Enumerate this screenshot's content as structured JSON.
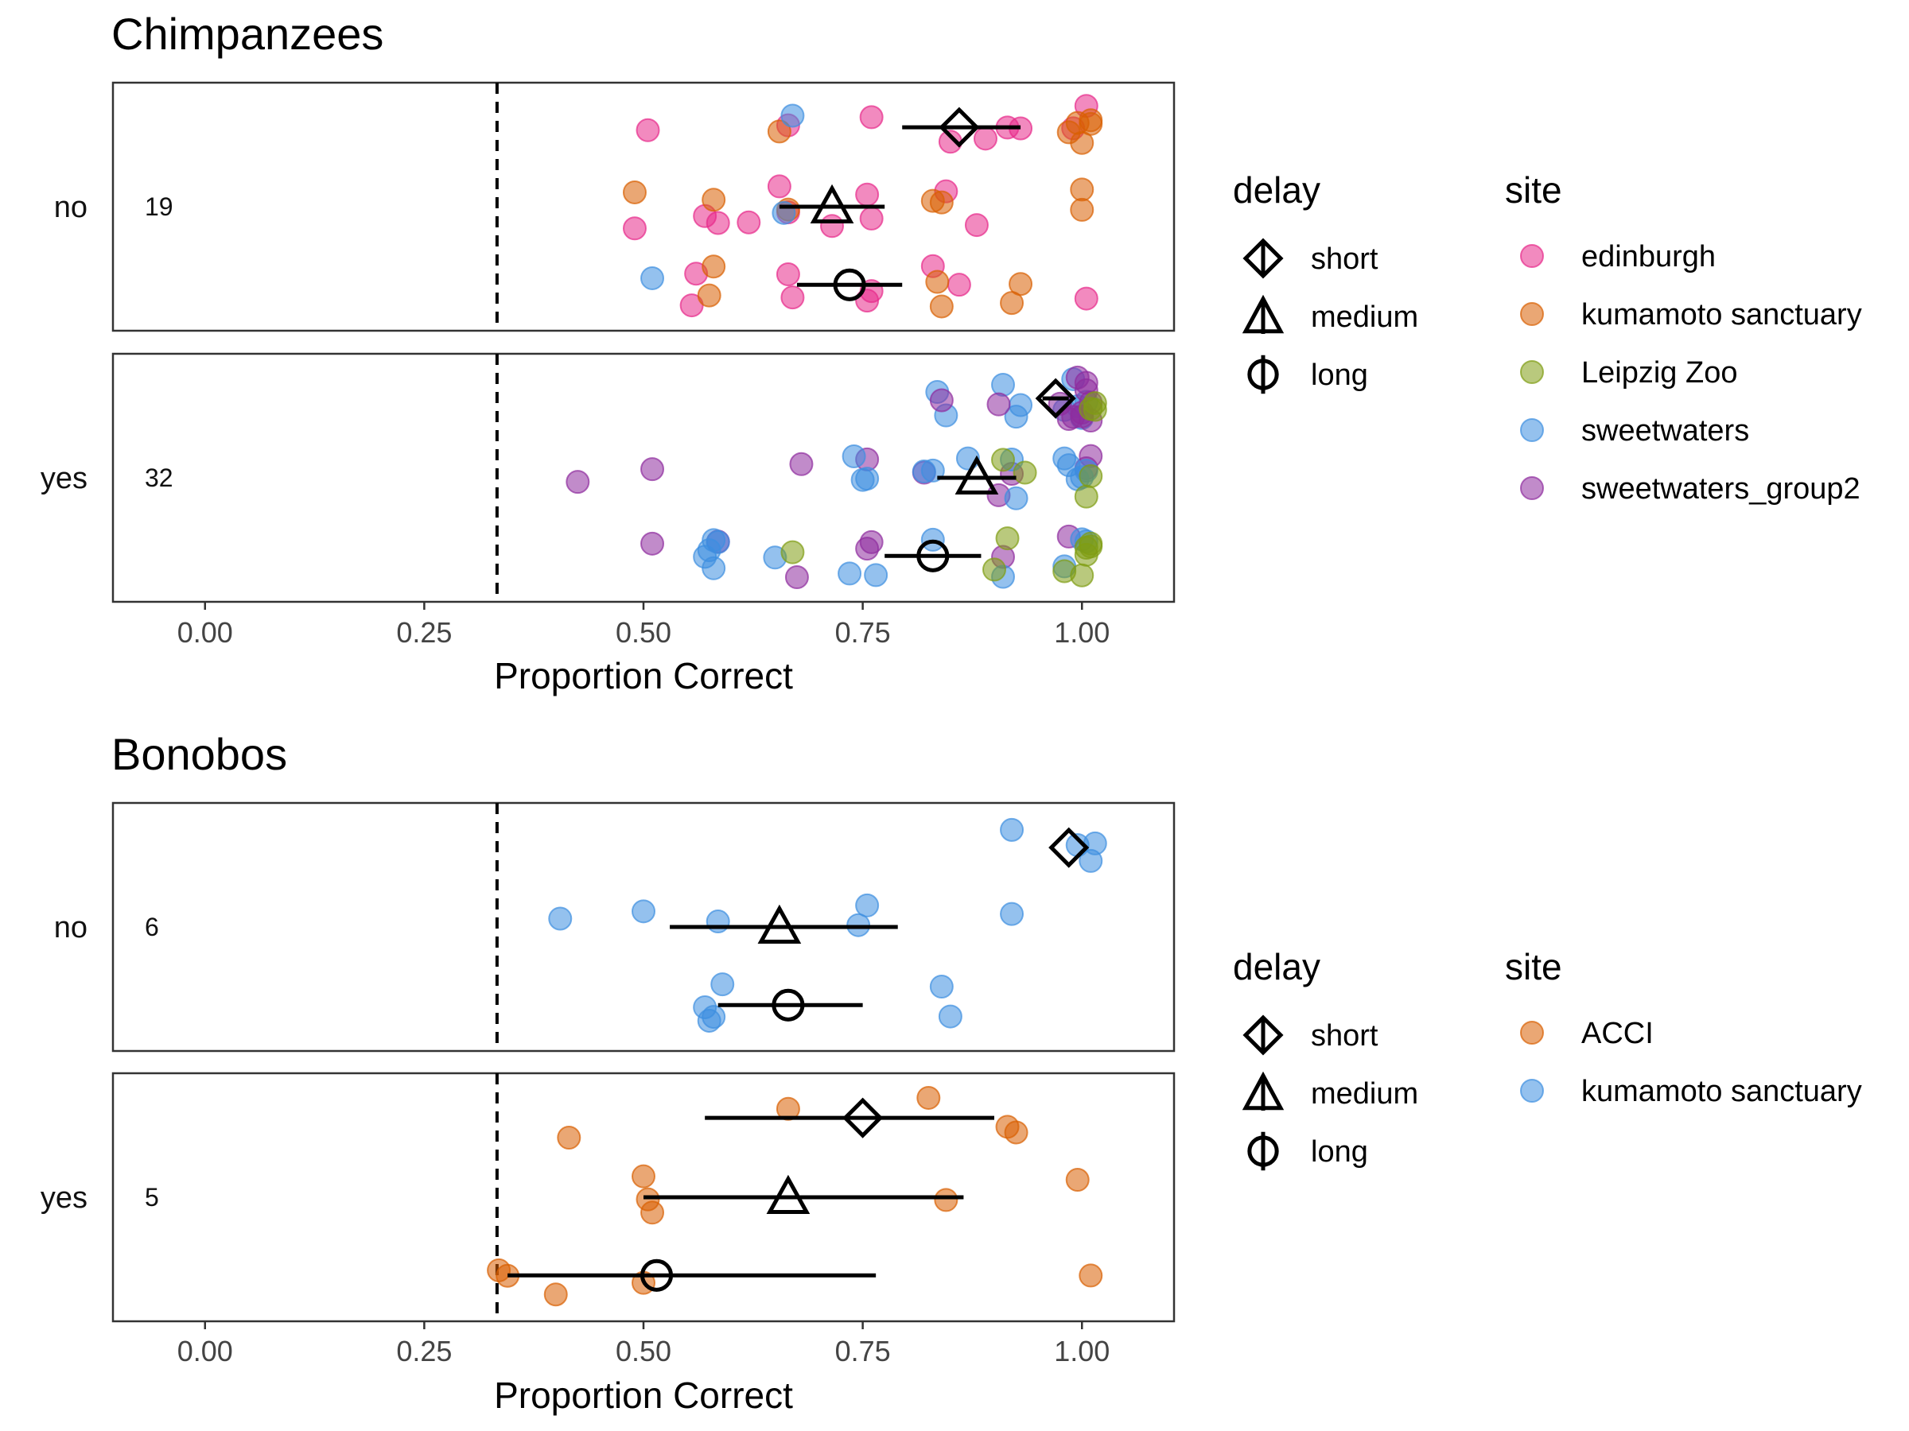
{
  "chart_data": [
    {
      "type": "scatter",
      "title": "Chimpanzees",
      "xlabel": "Proportion Correct",
      "xlim": [
        -0.105,
        1.105
      ],
      "xticks": [
        "0.00",
        "0.25",
        "0.50",
        "0.75",
        "1.00"
      ],
      "reference_line_x": 0.333,
      "facets": [
        {
          "label": "no",
          "count_label": "19",
          "summaries": [
            {
              "delay": "short",
              "mean": 0.86,
              "lo": 0.795,
              "hi": 0.93
            },
            {
              "delay": "medium",
              "mean": 0.715,
              "lo": 0.655,
              "hi": 0.775
            },
            {
              "delay": "long",
              "mean": 0.735,
              "lo": 0.675,
              "hi": 0.795
            }
          ],
          "points": [
            {
              "site": "edinburgh",
              "delay": "short",
              "values": [
                0.505,
                0.665,
                0.76,
                0.85,
                0.89,
                0.915,
                0.93,
                0.99,
                1.005
              ]
            },
            {
              "site": "kumamoto sanctuary",
              "delay": "short",
              "values": [
                0.655,
                0.985,
                0.995,
                1.0,
                1.01,
                1.01
              ]
            },
            {
              "site": "sweetwaters",
              "delay": "short",
              "values": [
                0.67
              ]
            },
            {
              "site": "edinburgh",
              "delay": "medium",
              "values": [
                0.49,
                0.57,
                0.585,
                0.62,
                0.655,
                0.665,
                0.715,
                0.755,
                0.76,
                0.845,
                0.88
              ]
            },
            {
              "site": "kumamoto sanctuary",
              "delay": "medium",
              "values": [
                0.49,
                0.58,
                0.665,
                0.83,
                0.84,
                1.0,
                1.0
              ]
            },
            {
              "site": "sweetwaters",
              "delay": "medium",
              "values": [
                0.66
              ]
            },
            {
              "site": "edinburgh",
              "delay": "long",
              "values": [
                0.555,
                0.56,
                0.665,
                0.67,
                0.755,
                0.76,
                0.83,
                0.86,
                1.005
              ]
            },
            {
              "site": "kumamoto sanctuary",
              "delay": "long",
              "values": [
                0.575,
                0.58,
                0.835,
                0.84,
                0.92,
                0.93
              ]
            },
            {
              "site": "sweetwaters",
              "delay": "long",
              "values": [
                0.51
              ]
            }
          ]
        },
        {
          "label": "yes",
          "count_label": "32",
          "summaries": [
            {
              "delay": "short",
              "mean": 0.97,
              "lo": 0.955,
              "hi": 0.985
            },
            {
              "delay": "medium",
              "mean": 0.88,
              "lo": 0.835,
              "hi": 0.925
            },
            {
              "delay": "long",
              "mean": 0.83,
              "lo": 0.775,
              "hi": 0.885
            }
          ],
          "points": [
            {
              "site": "sweetwaters",
              "delay": "short",
              "values": [
                0.835,
                0.845,
                0.91,
                0.925,
                0.93,
                0.98,
                0.99,
                0.995,
                1.0,
                1.005
              ]
            },
            {
              "site": "sweetwaters_group2",
              "delay": "short",
              "values": [
                0.84,
                0.905,
                0.975,
                0.985,
                0.99,
                0.995,
                1.0,
                1.0,
                1.005,
                1.005,
                1.01,
                1.01
              ]
            },
            {
              "site": "Leipzig Zoo",
              "delay": "short",
              "values": [
                1.01,
                1.015,
                1.015
              ]
            },
            {
              "site": "sweetwaters_group2",
              "delay": "medium",
              "values": [
                0.425,
                0.51,
                0.68,
                0.755,
                0.82,
                0.905,
                0.92,
                1.005,
                1.01
              ]
            },
            {
              "site": "sweetwaters",
              "delay": "medium",
              "values": [
                0.74,
                0.75,
                0.755,
                0.82,
                0.83,
                0.87,
                0.92,
                0.925,
                0.98,
                0.985,
                0.995,
                1.0,
                1.005
              ]
            },
            {
              "site": "Leipzig Zoo",
              "delay": "medium",
              "values": [
                0.91,
                0.935,
                1.005,
                1.01
              ]
            },
            {
              "site": "sweetwaters_group2",
              "delay": "long",
              "values": [
                0.51,
                0.585,
                0.675,
                0.755,
                0.76,
                0.91,
                0.985
              ]
            },
            {
              "site": "sweetwaters",
              "delay": "long",
              "values": [
                0.57,
                0.575,
                0.58,
                0.58,
                0.585,
                0.65,
                0.735,
                0.765,
                0.83,
                0.91,
                0.98,
                1.0,
                1.005
              ]
            },
            {
              "site": "Leipzig Zoo",
              "delay": "long",
              "values": [
                0.67,
                0.9,
                0.915,
                0.98,
                1.0,
                1.005,
                1.005,
                1.01,
                1.01
              ]
            }
          ]
        }
      ],
      "legends": [
        {
          "title": "delay",
          "entries": [
            "short",
            "medium",
            "long"
          ]
        },
        {
          "title": "site",
          "entries": [
            "edinburgh",
            "kumamoto sanctuary",
            "Leipzig Zoo",
            "sweetwaters",
            "sweetwaters_group2"
          ]
        }
      ]
    },
    {
      "type": "scatter",
      "title": "Bonobos",
      "xlabel": "Proportion Correct",
      "xlim": [
        -0.105,
        1.105
      ],
      "xticks": [
        "0.00",
        "0.25",
        "0.50",
        "0.75",
        "1.00"
      ],
      "reference_line_x": 0.333,
      "facets": [
        {
          "label": "no",
          "count_label": "6",
          "summaries": [
            {
              "delay": "short",
              "mean": 0.985,
              "lo": 0.985,
              "hi": 0.985
            },
            {
              "delay": "medium",
              "mean": 0.655,
              "lo": 0.53,
              "hi": 0.79
            },
            {
              "delay": "long",
              "mean": 0.665,
              "lo": 0.585,
              "hi": 0.75
            }
          ],
          "points": [
            {
              "site": "kumamoto sanctuary",
              "delay": "short",
              "values": [
                0.92,
                0.995,
                1.01,
                1.015
              ]
            },
            {
              "site": "kumamoto sanctuary",
              "delay": "medium",
              "values": [
                0.405,
                0.5,
                0.585,
                0.745,
                0.755,
                0.92
              ]
            },
            {
              "site": "kumamoto sanctuary",
              "delay": "long",
              "values": [
                0.57,
                0.575,
                0.58,
                0.59,
                0.84,
                0.85
              ]
            }
          ]
        },
        {
          "label": "yes",
          "count_label": "5",
          "summaries": [
            {
              "delay": "short",
              "mean": 0.75,
              "lo": 0.57,
              "hi": 0.9
            },
            {
              "delay": "medium",
              "mean": 0.665,
              "lo": 0.5,
              "hi": 0.865
            },
            {
              "delay": "long",
              "mean": 0.515,
              "lo": 0.345,
              "hi": 0.765
            }
          ],
          "points": [
            {
              "site": "ACCI",
              "delay": "short",
              "values": [
                0.415,
                0.665,
                0.825,
                0.915,
                0.925
              ]
            },
            {
              "site": "ACCI",
              "delay": "medium",
              "values": [
                0.5,
                0.505,
                0.51,
                0.845,
                0.995
              ]
            },
            {
              "site": "ACCI",
              "delay": "long",
              "values": [
                0.335,
                0.345,
                0.4,
                0.5,
                1.01
              ]
            }
          ]
        }
      ],
      "legends": [
        {
          "title": "delay",
          "entries": [
            "short",
            "medium",
            "long"
          ]
        },
        {
          "title": "site",
          "entries": [
            "ACCI",
            "kumamoto sanctuary"
          ]
        }
      ]
    }
  ],
  "colors": {
    "edinburgh": "#e7298a",
    "kumamoto sanctuary": "#d95f02",
    "Leipzig Zoo": "#7f9c13",
    "sweetwaters": "#3d8ee0",
    "sweetwaters_group2": "#8e2c9e",
    "ACCI": "#d95f02",
    "kumamoto sanctuary (Bonobos)": "#3d8ee0",
    "summary": "#000000",
    "panel_border": "#333333"
  }
}
